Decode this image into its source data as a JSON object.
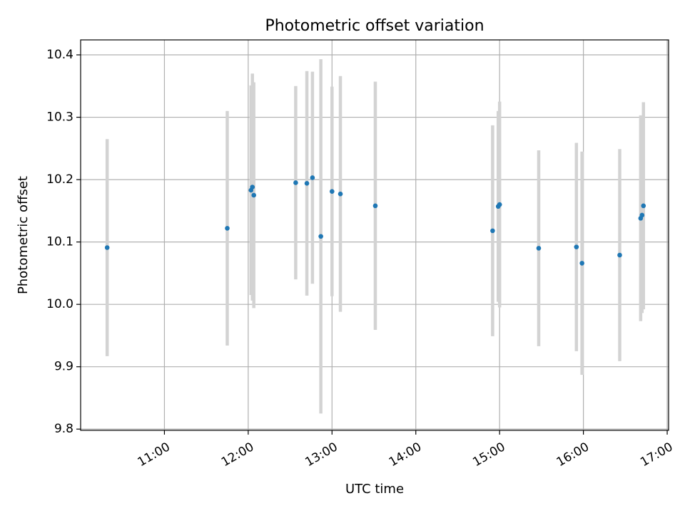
{
  "chart_data": {
    "type": "scatter",
    "title": "Photometric offset variation",
    "xlabel": "UTC time",
    "ylabel": "Photometric offset",
    "xlim": [
      "10:00",
      "17:01"
    ],
    "ylim": [
      9.798,
      10.424
    ],
    "x_ticks": [
      "11:00",
      "12:00",
      "13:00",
      "14:00",
      "15:00",
      "16:00",
      "17:00"
    ],
    "y_ticks": [
      "9.8",
      "9.9",
      "10.0",
      "10.1",
      "10.2",
      "10.3",
      "10.4"
    ],
    "grid": true,
    "legend": "none",
    "colors": {
      "points": "#1f77b4",
      "errorbars": "#d3d3d3",
      "grid": "#b0b0b0"
    },
    "series": [
      {
        "points": [
          {
            "x": "10:19",
            "y": 10.091,
            "yerr": 0.174
          },
          {
            "x": "11:45",
            "y": 10.122,
            "yerr": 0.188
          },
          {
            "x": "12:02",
            "y": 10.183,
            "yerr": 0.168
          },
          {
            "x": "12:03",
            "y": 10.188,
            "yerr": 0.182
          },
          {
            "x": "12:04",
            "y": 10.175,
            "yerr": 0.181
          },
          {
            "x": "12:34",
            "y": 10.195,
            "yerr": 0.155
          },
          {
            "x": "12:42",
            "y": 10.194,
            "yerr": 0.18
          },
          {
            "x": "12:46",
            "y": 10.203,
            "yerr": 0.17
          },
          {
            "x": "12:52",
            "y": 10.109,
            "yerr": 0.284
          },
          {
            "x": "13:00",
            "y": 10.181,
            "yerr": 0.168
          },
          {
            "x": "13:06",
            "y": 10.177,
            "yerr": 0.189
          },
          {
            "x": "13:31",
            "y": 10.158,
            "yerr": 0.199
          },
          {
            "x": "14:55",
            "y": 10.118,
            "yerr": 0.169
          },
          {
            "x": "14:59",
            "y": 10.157,
            "yerr": 0.153
          },
          {
            "x": "15:00",
            "y": 10.16,
            "yerr": 0.165
          },
          {
            "x": "15:28",
            "y": 10.09,
            "yerr": 0.157
          },
          {
            "x": "15:55",
            "y": 10.092,
            "yerr": 0.167
          },
          {
            "x": "15:59",
            "y": 10.066,
            "yerr": 0.179
          },
          {
            "x": "16:26",
            "y": 10.079,
            "yerr": 0.17
          },
          {
            "x": "16:41",
            "y": 10.138,
            "yerr": 0.165
          },
          {
            "x": "16:42",
            "y": 10.143,
            "yerr": 0.157
          },
          {
            "x": "16:43",
            "y": 10.158,
            "yerr": 0.166
          }
        ]
      }
    ]
  }
}
